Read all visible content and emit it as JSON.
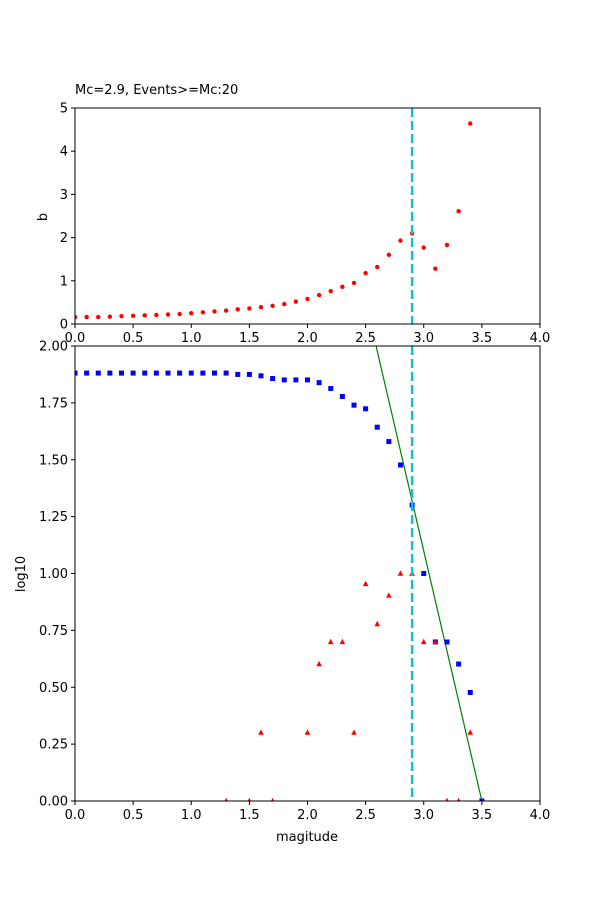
{
  "chart_data": [
    {
      "type": "scatter",
      "title": "Mc=2.9, Events>=Mc:20",
      "xlabel": "",
      "ylabel": "b",
      "xlim": [
        0,
        4
      ],
      "ylim": [
        0,
        5
      ],
      "xticks": [
        "0.0",
        "0.5",
        "1.0",
        "1.5",
        "2.0",
        "2.5",
        "3.0",
        "3.5",
        "4.0"
      ],
      "yticks": [
        "0",
        "1",
        "2",
        "3",
        "4",
        "5"
      ],
      "grid": false,
      "series": [
        {
          "marker": "circle",
          "color": "#ff0000",
          "points": [
            [
              0.0,
              0.16
            ],
            [
              0.1,
              0.16
            ],
            [
              0.2,
              0.16
            ],
            [
              0.3,
              0.17
            ],
            [
              0.4,
              0.18
            ],
            [
              0.5,
              0.19
            ],
            [
              0.6,
              0.2
            ],
            [
              0.7,
              0.21
            ],
            [
              0.8,
              0.22
            ],
            [
              0.9,
              0.23
            ],
            [
              1.0,
              0.25
            ],
            [
              1.1,
              0.27
            ],
            [
              1.2,
              0.29
            ],
            [
              1.3,
              0.31
            ],
            [
              1.4,
              0.34
            ],
            [
              1.5,
              0.36
            ],
            [
              1.6,
              0.39
            ],
            [
              1.7,
              0.42
            ],
            [
              1.8,
              0.46
            ],
            [
              1.9,
              0.52
            ],
            [
              2.0,
              0.58
            ],
            [
              2.1,
              0.67
            ],
            [
              2.2,
              0.76
            ],
            [
              2.3,
              0.86
            ],
            [
              2.4,
              0.95
            ],
            [
              2.5,
              1.18
            ],
            [
              2.6,
              1.32
            ],
            [
              2.7,
              1.6
            ],
            [
              2.8,
              1.93
            ],
            [
              2.9,
              2.1
            ],
            [
              3.0,
              1.77
            ],
            [
              3.1,
              1.28
            ],
            [
              3.2,
              1.83
            ],
            [
              3.3,
              2.61
            ],
            [
              3.4,
              4.64
            ]
          ]
        }
      ],
      "vline": {
        "x": 2.9,
        "color": "#17becf",
        "style": "dashed"
      }
    },
    {
      "type": "scatter",
      "title": "",
      "xlabel": "magitude",
      "ylabel": "log10",
      "xlim": [
        0,
        4
      ],
      "ylim": [
        0,
        2
      ],
      "xticks": [
        "0.0",
        "0.5",
        "1.0",
        "1.5",
        "2.0",
        "2.5",
        "3.0",
        "3.5",
        "4.0"
      ],
      "yticks": [
        "0.00",
        "0.25",
        "0.50",
        "0.75",
        "1.00",
        "1.25",
        "1.50",
        "1.75",
        "2.00"
      ],
      "grid": false,
      "series": [
        {
          "marker": "square",
          "color": "#0000ff",
          "points": [
            [
              0.0,
              1.881
            ],
            [
              0.1,
              1.881
            ],
            [
              0.2,
              1.881
            ],
            [
              0.3,
              1.881
            ],
            [
              0.4,
              1.881
            ],
            [
              0.5,
              1.881
            ],
            [
              0.6,
              1.881
            ],
            [
              0.7,
              1.881
            ],
            [
              0.8,
              1.881
            ],
            [
              0.9,
              1.881
            ],
            [
              1.0,
              1.881
            ],
            [
              1.1,
              1.881
            ],
            [
              1.2,
              1.881
            ],
            [
              1.3,
              1.881
            ],
            [
              1.4,
              1.875
            ],
            [
              1.5,
              1.875
            ],
            [
              1.6,
              1.869
            ],
            [
              1.7,
              1.857
            ],
            [
              1.8,
              1.851
            ],
            [
              1.9,
              1.851
            ],
            [
              2.0,
              1.851
            ],
            [
              2.1,
              1.839
            ],
            [
              2.2,
              1.813
            ],
            [
              2.3,
              1.778
            ],
            [
              2.4,
              1.74
            ],
            [
              2.5,
              1.724
            ],
            [
              2.6,
              1.643
            ],
            [
              2.7,
              1.58
            ],
            [
              2.8,
              1.477
            ],
            [
              2.9,
              1.301
            ],
            [
              3.0,
              1.0
            ],
            [
              3.1,
              0.699
            ],
            [
              3.2,
              0.699
            ],
            [
              3.3,
              0.602
            ],
            [
              3.4,
              0.477
            ],
            [
              3.5,
              0.0
            ]
          ]
        },
        {
          "marker": "triangle",
          "color": "#ff0000",
          "points": [
            [
              1.3,
              0.0
            ],
            [
              1.5,
              0.0
            ],
            [
              1.6,
              0.301
            ],
            [
              1.7,
              0.0
            ],
            [
              2.0,
              0.301
            ],
            [
              2.1,
              0.602
            ],
            [
              2.2,
              0.699
            ],
            [
              2.3,
              0.699
            ],
            [
              2.4,
              0.301
            ],
            [
              2.5,
              0.954
            ],
            [
              2.6,
              0.778
            ],
            [
              2.7,
              0.903
            ],
            [
              2.8,
              1.0
            ],
            [
              2.9,
              1.0
            ],
            [
              3.0,
              0.699
            ],
            [
              3.1,
              0.699
            ],
            [
              3.2,
              0.0
            ],
            [
              3.3,
              0.0
            ],
            [
              3.4,
              0.301
            ]
          ]
        }
      ],
      "fit_line": {
        "color": "#008000",
        "x": [
          2.59,
          3.5
        ],
        "y": [
          2.0,
          0.0
        ]
      },
      "vline": {
        "x": 2.9,
        "color": "#17becf",
        "style": "dashed"
      }
    }
  ]
}
